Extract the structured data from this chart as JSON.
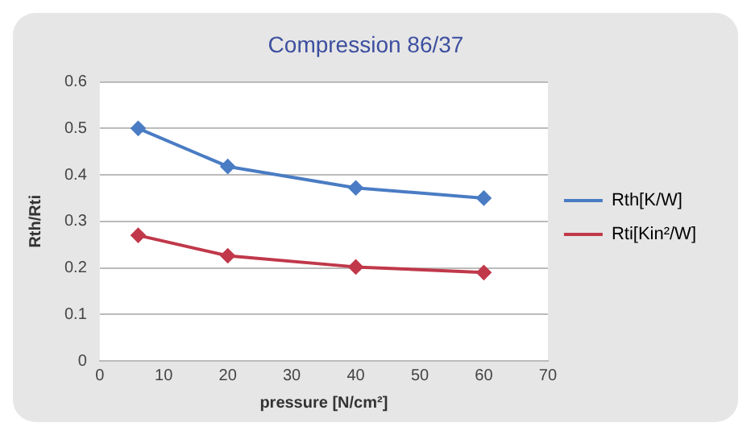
{
  "chart_data": {
    "type": "line",
    "title": "Compression 86/37",
    "xlabel": "pressure [N/cm²]",
    "ylabel": "Rth/Rti",
    "x": [
      6,
      20,
      40,
      60
    ],
    "series": [
      {
        "name": "Rth[K/W]",
        "color": "#4a7cc4",
        "values": [
          0.5,
          0.418,
          0.372,
          0.35
        ]
      },
      {
        "name": "Rti[Kin²/W]",
        "color": "#c0384a",
        "values": [
          0.27,
          0.226,
          0.202,
          0.19
        ]
      }
    ],
    "xlim": [
      0,
      70
    ],
    "xticks": [
      0,
      10,
      20,
      30,
      40,
      50,
      60,
      70
    ],
    "ylim": [
      0,
      0.6
    ],
    "yticks": [
      0,
      0.1,
      0.2,
      0.3,
      0.4,
      0.5,
      0.6
    ],
    "grid": "y",
    "legend": "right",
    "marker": "diamond",
    "line_style": "solid"
  }
}
